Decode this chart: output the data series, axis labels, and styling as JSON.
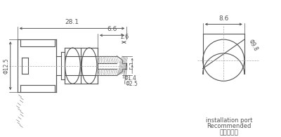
{
  "bg_color": "#ffffff",
  "line_color": "#555555",
  "text_color": "#555555",
  "fig_width": 4.0,
  "fig_height": 1.95,
  "dpi": 100,
  "annotations": {
    "dim_28_1": "28.1",
    "dim_6_6": "6.6",
    "dim_1_6": "1.6",
    "dim_12_5": "Φ12.5",
    "dim_1_4": "Φ1.4",
    "dim_2_5": "Φ2.5",
    "dim_8_6": "8.6",
    "dim_9_8": "Φ9.8",
    "chinese_text": "推荐安装孔",
    "english_text1": "Recommended",
    "english_text2": "installation port"
  }
}
